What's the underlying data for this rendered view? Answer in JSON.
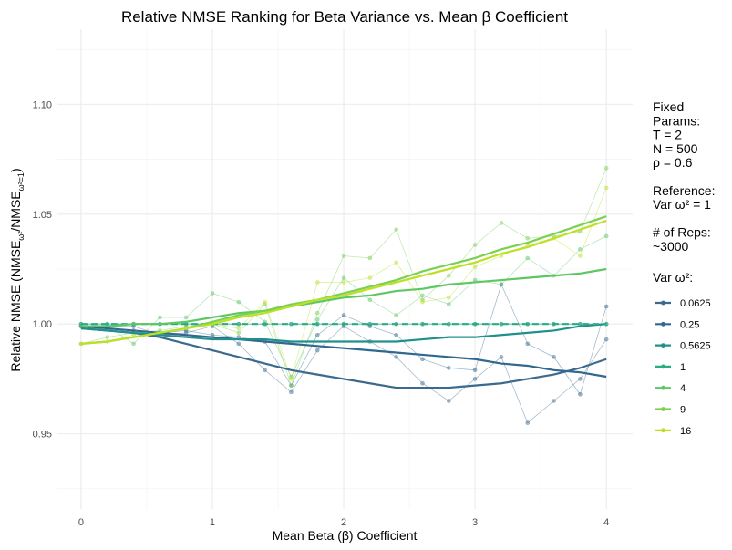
{
  "chart_data": {
    "type": "line",
    "title": "Relative NMSE Ranking for Beta Variance vs. Mean β Coefficient",
    "xlabel": "Mean Beta (β) Coefficient",
    "ylabel_main": "Relative NMSE (NMSE",
    "ylabel_sub1": "ω²",
    "ylabel_mid": "/NMSE",
    "ylabel_sub2": "ω²=1",
    "ylabel_end": ")",
    "xlim": [
      -0.18,
      4.2
    ],
    "ylim": [
      0.9158,
      1.1342
    ],
    "x_ticks": [
      0,
      1,
      2,
      3,
      4
    ],
    "x_tick_labels": [
      "0",
      "1",
      "2",
      "3",
      "4"
    ],
    "y_ticks": [
      0.95,
      1.0,
      1.05,
      1.1
    ],
    "y_tick_labels": [
      "0.95",
      "1.00",
      "1.05",
      "1.10"
    ],
    "grid": true,
    "x": [
      0,
      0.2,
      0.4,
      0.6,
      0.8,
      1.0,
      1.2,
      1.4,
      1.6,
      1.8,
      2.0,
      2.2,
      2.4,
      2.6,
      2.8,
      3.0,
      3.2,
      3.4,
      3.6,
      3.8,
      4.0
    ],
    "legend_info": [
      "Fixed",
      "Params:",
      "T = 2",
      "N = 500",
      "ρ = 0.6",
      "",
      "Reference:",
      "Var ω² = 1",
      "",
      "# of Reps:",
      "~3000"
    ],
    "legend_title": "Var ω²:",
    "series": [
      {
        "name": "0.0625",
        "color": "#3b6a8e",
        "raw": [
          0.999,
          0.999,
          0.999,
          0.995,
          0.996,
          0.999,
          0.991,
          0.979,
          0.969,
          0.988,
          0.999,
          0.992,
          0.985,
          0.973,
          0.965,
          0.975,
          0.985,
          0.955,
          0.965,
          0.975,
          0.993
        ],
        "trend": [
          0.998,
          0.997,
          0.996,
          0.994,
          0.991,
          0.988,
          0.985,
          0.982,
          0.979,
          0.977,
          0.975,
          0.973,
          0.971,
          0.971,
          0.971,
          0.972,
          0.973,
          0.975,
          0.977,
          0.98,
          0.984
        ]
      },
      {
        "name": "0.25",
        "color": "#31688e",
        "raw": [
          0.999,
          0.998,
          0.997,
          0.996,
          0.997,
          0.995,
          0.994,
          0.992,
          0.972,
          0.995,
          1.004,
          0.999,
          0.995,
          0.984,
          0.98,
          0.979,
          1.018,
          0.991,
          0.985,
          0.968,
          1.008
        ],
        "trend": [
          0.999,
          0.998,
          0.997,
          0.996,
          0.995,
          0.994,
          0.993,
          0.992,
          0.991,
          0.99,
          0.989,
          0.988,
          0.987,
          0.986,
          0.985,
          0.984,
          0.982,
          0.981,
          0.979,
          0.978,
          0.976
        ]
      },
      {
        "name": "0.5625",
        "color": "#21908d",
        "raw": [
          1.0,
          1.0,
          1.0,
          1.0,
          1.0,
          1.0,
          1.0,
          1.0,
          1.0,
          1.0,
          1.0,
          1.0,
          1.0,
          1.0,
          1.0,
          1.0,
          1.0,
          1.0,
          1.0,
          1.0,
          1.0
        ],
        "trend": [
          0.998,
          0.997,
          0.996,
          0.995,
          0.994,
          0.993,
          0.993,
          0.993,
          0.992,
          0.992,
          0.992,
          0.992,
          0.992,
          0.993,
          0.994,
          0.994,
          0.995,
          0.996,
          0.997,
          0.999,
          1.0
        ]
      },
      {
        "name": "1",
        "color": "#27ad81",
        "raw": [
          1.0,
          1.0,
          1.0,
          1.0,
          1.0,
          1.0,
          1.0,
          1.0,
          1.0,
          1.0,
          1.0,
          1.0,
          1.0,
          1.0,
          1.0,
          1.0,
          1.0,
          1.0,
          1.0,
          1.0,
          1.0
        ],
        "trend": [
          1.0,
          1.0,
          1.0,
          1.0,
          1.0,
          1.0,
          1.0,
          1.0,
          1.0,
          1.0,
          1.0,
          1.0,
          1.0,
          1.0,
          1.0,
          1.0,
          1.0,
          1.0,
          1.0,
          1.0,
          1.0
        ]
      },
      {
        "name": "4",
        "color": "#5dc863",
        "raw": [
          0.999,
          0.999,
          0.991,
          1.003,
          1.003,
          1.014,
          1.01,
          1.001,
          0.976,
          1.002,
          1.021,
          1.011,
          1.004,
          1.013,
          1.009,
          1.02,
          1.018,
          1.03,
          1.022,
          1.034,
          1.04
        ],
        "trend": [
          0.999,
          0.999,
          1.0,
          1.0,
          1.001,
          1.003,
          1.005,
          1.006,
          1.008,
          1.01,
          1.012,
          1.013,
          1.015,
          1.016,
          1.018,
          1.019,
          1.02,
          1.021,
          1.022,
          1.023,
          1.025
        ]
      },
      {
        "name": "9",
        "color": "#7ad151",
        "raw": [
          0.991,
          0.994,
          0.996,
          0.997,
          0.999,
          1.0,
          0.996,
          1.009,
          0.972,
          1.005,
          1.031,
          1.03,
          1.043,
          1.011,
          1.022,
          1.036,
          1.046,
          1.039,
          1.04,
          1.042,
          1.071
        ],
        "trend": [
          0.991,
          0.992,
          0.994,
          0.996,
          0.998,
          1.001,
          1.004,
          1.006,
          1.009,
          1.011,
          1.014,
          1.017,
          1.02,
          1.024,
          1.027,
          1.03,
          1.034,
          1.037,
          1.041,
          1.045,
          1.049
        ]
      },
      {
        "name": "16",
        "color": "#bddf26",
        "raw": [
          0.991,
          0.992,
          0.995,
          0.996,
          0.998,
          1.0,
          0.998,
          1.01,
          0.975,
          1.019,
          1.019,
          1.021,
          1.028,
          1.01,
          1.012,
          1.026,
          1.031,
          1.036,
          1.039,
          1.031,
          1.062
        ],
        "trend": [
          0.991,
          0.992,
          0.994,
          0.996,
          0.998,
          1.0,
          1.003,
          1.005,
          1.008,
          1.011,
          1.013,
          1.016,
          1.019,
          1.022,
          1.025,
          1.028,
          1.032,
          1.035,
          1.039,
          1.043,
          1.047
        ]
      }
    ]
  }
}
